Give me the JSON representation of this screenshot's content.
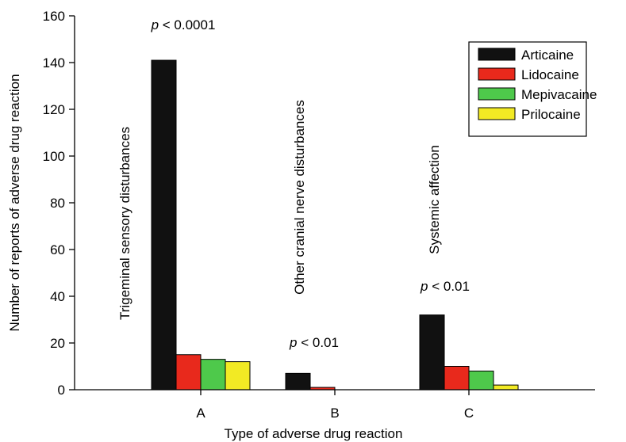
{
  "chart_data": {
    "type": "bar",
    "title": "",
    "xlabel": "Type of adverse drug reaction",
    "ylabel": "Number of reports of adverse drug reaction",
    "categories": [
      "A",
      "B",
      "C"
    ],
    "series": [
      {
        "name": "Articaine",
        "values": [
          141,
          7,
          32
        ],
        "color": "#111111"
      },
      {
        "name": "Lidocaine",
        "values": [
          15,
          1,
          10
        ],
        "color": "#e8291c"
      },
      {
        "name": "Mepivacaine",
        "values": [
          13,
          0,
          8
        ],
        "color": "#4ec94b"
      },
      {
        "name": "Prilocaine",
        "values": [
          12,
          0,
          2
        ],
        "color": "#f2ea24"
      }
    ],
    "ylim": [
      0,
      160
    ],
    "yticks": [
      0,
      20,
      40,
      60,
      80,
      100,
      120,
      140,
      160
    ],
    "grid": false,
    "legend_position": "top-right",
    "annotations": {
      "category_descriptions": [
        "Trigeminal sensory disturbances",
        "Other cranial nerve disturbances",
        "Systemic affection"
      ],
      "significance": [
        {
          "p": "p",
          "rest": " < 0.0001"
        },
        {
          "p": "p",
          "rest": " < 0.01"
        },
        {
          "p": "p",
          "rest": " < 0.01"
        }
      ]
    }
  }
}
